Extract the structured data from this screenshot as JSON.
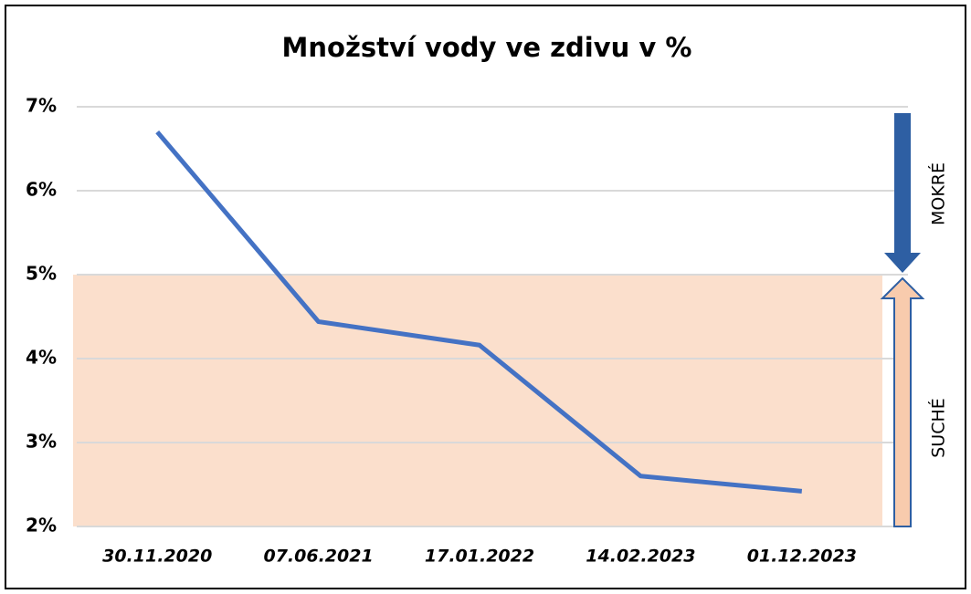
{
  "chart_data": {
    "type": "line",
    "title": "Množství vody ve zdivu v %",
    "categories": [
      "30.11.2020",
      "07.06.2021",
      "17.01.2022",
      "14.02.2023",
      "01.12.2023"
    ],
    "series": [
      {
        "color": "#4472c4",
        "values": [
          6.7,
          4.44,
          4.16,
          2.6,
          2.42
        ]
      }
    ],
    "ylim": [
      2,
      7
    ],
    "yticks": [
      {
        "value": 2,
        "label": "2%"
      },
      {
        "value": 3,
        "label": "3%"
      },
      {
        "value": 4,
        "label": "4%"
      },
      {
        "value": 5,
        "label": "5%"
      },
      {
        "value": 6,
        "label": "6%"
      },
      {
        "value": 7,
        "label": "7%"
      }
    ],
    "grid": true,
    "threshold": 5,
    "band_color": "#fbdfcc",
    "annotations": [
      "MOKRÉ",
      "SUCHÉ"
    ]
  }
}
